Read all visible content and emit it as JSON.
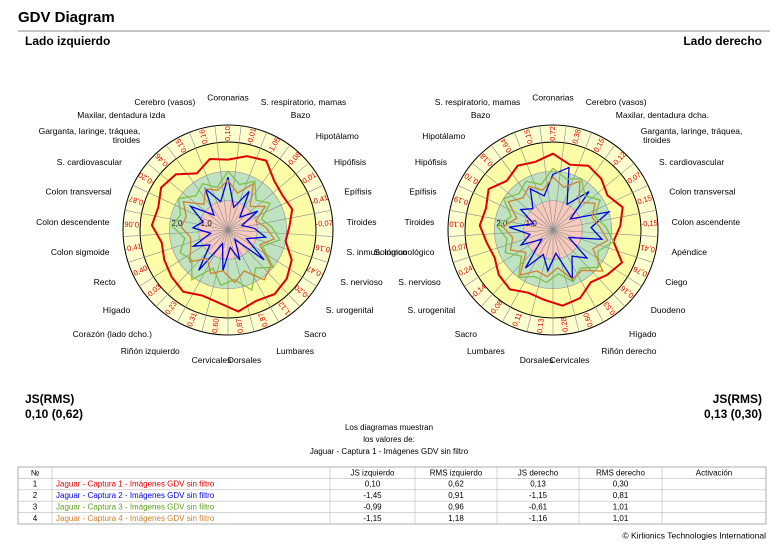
{
  "header": {
    "title": "GDV Diagram"
  },
  "chart_data": [
    {
      "type": "radar",
      "title": "Lado izquierdo",
      "categories": [
        "Coronarias",
        "S. respiratorio, mamas",
        "Bazo",
        "Hipotálamo",
        "Hipófisis",
        "Epífisis",
        "Tiroides",
        "S. inmunológico",
        "S. nervioso",
        "S. urogenital",
        "Sacro",
        "Lumbares",
        "Dorsales",
        "Cervicales",
        "Riñón izquierdo",
        "Corazón (lado dcho.)",
        "Hígado",
        "Recto",
        "Colon sigmoide",
        "Colon descendente",
        "Colon transversal",
        "S. cardiovascular",
        "Garganta, laringe, tráquea,\ntiroides",
        "Maxilar, dentadura izda",
        "Cerebro (vasos)"
      ],
      "sector_labels": [
        "0,10",
        "-0,01",
        "-1,05",
        "-0,08",
        "0,01",
        "-0,41",
        "-0,07",
        "0,16",
        "-0,47",
        "-0,20",
        "1,12",
        "0,87",
        "0,87",
        "0,60",
        "0,31",
        "0,23",
        "-0,03",
        "0,40",
        "-0,41",
        "0,06",
        "0,87",
        "-0,20",
        "0,46",
        "0,15",
        "0,16"
      ],
      "rlim": [
        0,
        3
      ],
      "rticks": [
        {
          "value": 1,
          "label": "1,0"
        },
        {
          "value": 2,
          "label": "2,0"
        }
      ],
      "series": [
        {
          "color": "#e00000",
          "values": [
            2.4,
            2.6,
            2.7,
            2.3,
            2.2,
            2.3,
            2.1,
            2.0,
            2.4,
            2.6,
            2.7,
            2.6,
            2.8,
            2.5,
            2.4,
            2.6,
            2.5,
            2.4,
            2.3,
            2.6,
            2.5,
            2.7,
            2.6,
            2.2,
            2.5
          ]
        },
        {
          "color": "#0000e0",
          "values": [
            1.8,
            0.8,
            1.5,
            0.6,
            1.2,
            0.5,
            0.9,
            1.3,
            0.7,
            1.6,
            0.4,
            1.1,
            0.6,
            1.4,
            0.5,
            1.7,
            0.8,
            1.3,
            0.6,
            1.2,
            0.9,
            1.5,
            0.7,
            1.6,
            1.0
          ]
        },
        {
          "color": "#80c040",
          "values": [
            2.0,
            1.6,
            1.9,
            1.4,
            1.7,
            1.2,
            1.5,
            1.8,
            1.3,
            2.0,
            1.6,
            2.2,
            1.7,
            1.9,
            1.4,
            2.1,
            1.6,
            1.8,
            1.5,
            1.9,
            1.7,
            2.0,
            1.6,
            1.8,
            1.5
          ]
        },
        {
          "color": "#d08030",
          "values": [
            1.7,
            1.3,
            1.8,
            1.1,
            1.5,
            1.0,
            1.3,
            1.6,
            1.2,
            1.9,
            2.1,
            1.5,
            1.8,
            1.4,
            1.6,
            1.2,
            1.7,
            1.4,
            1.3,
            1.6,
            1.5,
            1.8,
            1.2,
            1.6,
            1.4
          ]
        }
      ],
      "summary_label": "JS(RMS)",
      "summary": "0,10 (0,62)"
    },
    {
      "type": "radar",
      "title": "Lado derecho",
      "categories": [
        "Coronarias",
        "Cerebro (vasos)",
        "Maxilar, dentadura dcha.",
        "Garganta, laringe, tráquea,\ntiroides",
        "S. cardiovascular",
        "Colon transversal",
        "Colon ascendente",
        "Apéndice",
        "Ciego",
        "Duodeno",
        "Hígado",
        "Riñón derecho",
        "Cervicales",
        "Dorsales",
        "Lumbares",
        "Sacro",
        "S. urogenital",
        "S. nervioso",
        "S. inmunológico",
        "Tiroides",
        "Epífisis",
        "Hipófisis",
        "Hipotálamo",
        "Bazo",
        "S. respiratorio, mamas"
      ],
      "sector_labels": [
        "0,72",
        "0,38",
        "0,15",
        "-0,12",
        "0,07",
        "0,15",
        "-0,15",
        "0,41",
        "0,76",
        "0,16",
        "0,53",
        "0,60",
        "-0,28",
        "0,13",
        "0,11",
        "-0,08",
        "-0,14",
        "0,24",
        "-0,07",
        "0,10",
        "0,19",
        "0,70",
        "0,18",
        "0,64",
        "0,15"
      ],
      "rlim": [
        0,
        3
      ],
      "rticks": [
        {
          "value": 1,
          "label": "1,0"
        },
        {
          "value": 2,
          "label": "2,0"
        }
      ],
      "series": [
        {
          "color": "#e00000",
          "values": [
            2.6,
            2.3,
            2.5,
            2.4,
            2.2,
            2.5,
            2.3,
            2.1,
            2.6,
            2.4,
            2.2,
            2.5,
            2.6,
            2.4,
            2.3,
            2.5,
            2.4,
            2.2,
            2.3,
            2.5,
            2.4,
            2.6,
            2.3,
            2.5,
            2.4
          ]
        },
        {
          "color": "#0000e0",
          "values": [
            1.9,
            2.2,
            1.0,
            1.8,
            0.7,
            2.0,
            1.3,
            1.7,
            0.6,
            1.5,
            1.1,
            1.8,
            0.8,
            1.4,
            0.9,
            1.6,
            0.5,
            1.2,
            0.8,
            1.5,
            0.7,
            1.3,
            1.0,
            1.6,
            1.2
          ]
        },
        {
          "color": "#80c040",
          "values": [
            2.1,
            1.8,
            2.0,
            1.6,
            1.9,
            1.5,
            1.8,
            2.1,
            1.7,
            2.0,
            1.6,
            1.9,
            1.5,
            1.8,
            1.7,
            2.0,
            1.4,
            1.8,
            1.6,
            1.9,
            1.5,
            2.0,
            1.7,
            1.9,
            1.6
          ]
        },
        {
          "color": "#d08030",
          "values": [
            1.8,
            1.5,
            1.9,
            1.3,
            1.7,
            1.4,
            1.6,
            1.9,
            1.5,
            2.2,
            1.7,
            1.8,
            1.3,
            1.6,
            1.5,
            1.9,
            1.2,
            1.6,
            1.4,
            1.7,
            1.3,
            1.8,
            1.5,
            1.7,
            1.4
          ]
        }
      ],
      "summary_label": "JS(RMS)",
      "summary": "0,13 (0,30)"
    }
  ],
  "note": [
    "Los diagramas muestran",
    "los valores de:",
    "Jaguar - Captura 1 - Imágenes GDV sin filtro"
  ],
  "table": {
    "columns": [
      "№",
      "JS izquierdo",
      "RMS izquierdo",
      "JS derecho",
      "RMS derecho",
      "Activación"
    ],
    "rows": [
      {
        "number": "1",
        "name": "Jaguar - Captura 1 - Imágenes GDV sin filtro",
        "color": "#e00000",
        "values": [
          "0,10",
          "0,62",
          "0,13",
          "0,30"
        ]
      },
      {
        "number": "2",
        "name": "Jaguar - Captura 2 - Imágenes GDV sin filtro",
        "color": "#0000e0",
        "values": [
          "-1,45",
          "0,91",
          "-1,15",
          "0,81"
        ]
      },
      {
        "number": "3",
        "name": "Jaguar - Captura 3 - Imágenes GDV sin filtro",
        "color": "#60a020",
        "values": [
          "-0,99",
          "0,96",
          "-0,61",
          "1,01"
        ]
      },
      {
        "number": "4",
        "name": "Jaguar - Captura 4 - Imágenes GDV sin filtro",
        "color": "#d08030",
        "values": [
          "-1,15",
          "1,18",
          "-1,16",
          "1,01"
        ]
      }
    ]
  },
  "footer": "© Kirlionics Technologies International"
}
